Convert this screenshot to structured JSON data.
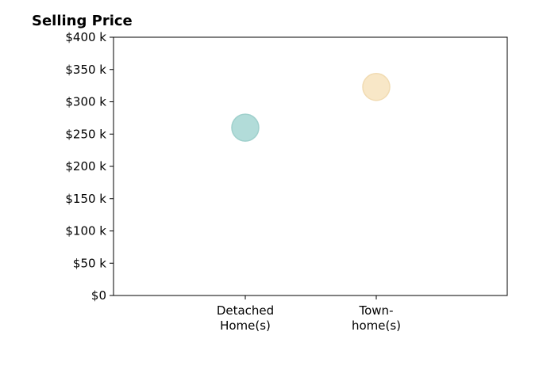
{
  "chart_data": {
    "type": "scatter",
    "title": "Selling Price",
    "xlabel": "",
    "ylabel": "",
    "categories": [
      [
        "Detached",
        "Home(s)"
      ],
      [
        "Town-",
        "home(s)"
      ]
    ],
    "values": [
      260000,
      323000
    ],
    "colors": [
      "#b2dcd9",
      "#f8e7c7"
    ],
    "stroke_colors": [
      "#9fd0cc",
      "#f1dbb2"
    ],
    "ylim": [
      0,
      400000
    ],
    "y_ticks": [
      0,
      50000,
      100000,
      150000,
      200000,
      250000,
      300000,
      350000,
      400000
    ],
    "y_tick_labels": [
      "$0",
      "$50 k",
      "$100 k",
      "$150 k",
      "$200 k",
      "$250 k",
      "$300 k",
      "$350 k",
      "$400 k"
    ],
    "grid": false,
    "legend": "none"
  }
}
